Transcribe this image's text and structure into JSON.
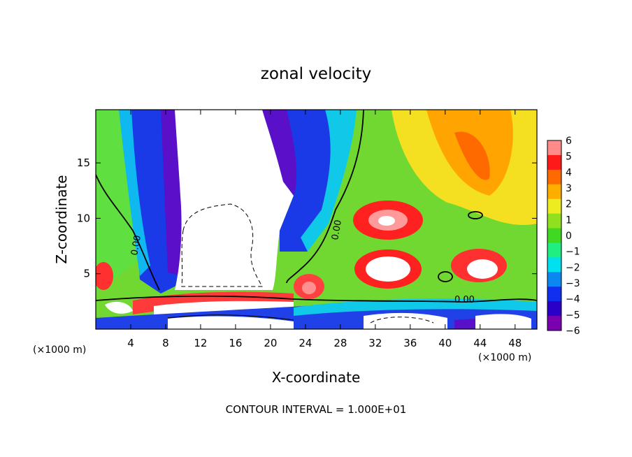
{
  "chart_data": {
    "type": "heatmap",
    "title": "zonal velocity",
    "xlabel": "X-coordinate",
    "ylabel": "Z-coordinate",
    "x_unit_left": "(×1000 m)",
    "x_unit_right": "(×1000 m)",
    "footer": "CONTOUR INTERVAL = 1.000E+01",
    "contour_label": "0.00",
    "xlim": [
      0,
      50.5
    ],
    "ylim": [
      0,
      19.8
    ],
    "x_ticks": [
      4,
      8,
      12,
      16,
      20,
      24,
      28,
      32,
      36,
      40,
      44,
      48
    ],
    "y_ticks": [
      5,
      10,
      15
    ],
    "colorbar": {
      "range": [
        -6,
        6
      ],
      "ticks": [
        6,
        5,
        4,
        3,
        2,
        1,
        0,
        -1,
        -2,
        -3,
        -4,
        -5,
        -6
      ],
      "colors": [
        "#7a00b0",
        "#2a00c8",
        "#1030f0",
        "#0a88f0",
        "#00e0ee",
        "#20ee80",
        "#40d820",
        "#90e020",
        "#ecec20",
        "#ffae00",
        "#ff6a00",
        "#ff1a1a",
        "#ff8a8a"
      ]
    },
    "regions": [
      {
        "x": 2,
        "z": 14,
        "value": 1
      },
      {
        "x": 8,
        "z": 14,
        "value": -4
      },
      {
        "x": 12,
        "z": 12,
        "value": -6
      },
      {
        "x": 16,
        "z": 17,
        "value": -6
      },
      {
        "x": 22,
        "z": 15,
        "value": -4
      },
      {
        "x": 24,
        "z": 12,
        "value": -2
      },
      {
        "x": 28,
        "z": 16,
        "value": 0
      },
      {
        "x": 33,
        "z": 10,
        "value": 6
      },
      {
        "x": 33,
        "z": 5.5,
        "value": 6
      },
      {
        "x": 38,
        "z": 14,
        "value": 2
      },
      {
        "x": 43,
        "z": 16,
        "value": 5
      },
      {
        "x": 44,
        "z": 5.5,
        "value": 6
      },
      {
        "x": 24,
        "z": 3.5,
        "value": 4
      },
      {
        "x": 14,
        "z": 2.5,
        "value": 5
      },
      {
        "x": 14,
        "z": 1,
        "value": -6
      },
      {
        "x": 32,
        "z": 1,
        "value": -6
      },
      {
        "x": 44,
        "z": 1,
        "value": -6
      }
    ]
  }
}
